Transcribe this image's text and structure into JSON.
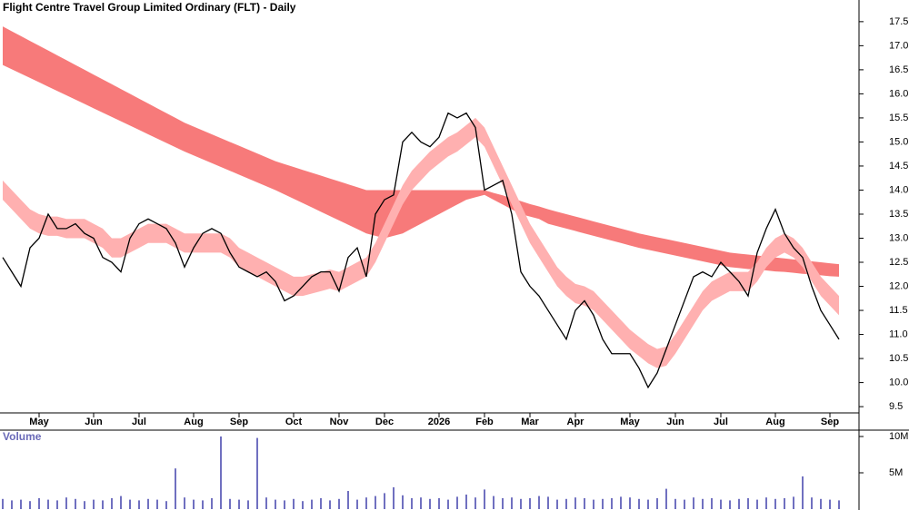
{
  "chart_data": [
    {
      "type": "line",
      "title": "Flight Centre Travel Group Limited Ordinary (FLT) - Daily",
      "categories": [
        null,
        null,
        null,
        null,
        "May",
        null,
        null,
        null,
        null,
        null,
        "Jun",
        null,
        null,
        null,
        null,
        "Jul",
        null,
        null,
        null,
        null,
        null,
        "Aug",
        null,
        null,
        null,
        null,
        "Sep",
        null,
        null,
        null,
        null,
        null,
        "Oct",
        null,
        null,
        null,
        null,
        "Nov",
        null,
        null,
        null,
        null,
        "Dec",
        null,
        null,
        null,
        null,
        null,
        "2026",
        null,
        null,
        null,
        null,
        "Feb",
        null,
        null,
        null,
        null,
        "Mar",
        null,
        null,
        null,
        null,
        "Apr",
        null,
        null,
        null,
        null,
        null,
        "May",
        null,
        null,
        null,
        null,
        "Jun",
        null,
        null,
        null,
        null,
        "Jul",
        null,
        null,
        null,
        null,
        null,
        "Aug",
        null,
        null,
        null,
        null,
        null,
        "Sep",
        null
      ],
      "series": [
        {
          "color": "#000000",
          "values": [
            12.6,
            12.3,
            12.0,
            12.8,
            13.0,
            13.5,
            13.2,
            13.2,
            13.3,
            13.1,
            13.0,
            12.6,
            12.5,
            12.3,
            13.0,
            13.3,
            13.4,
            13.3,
            13.2,
            12.9,
            12.4,
            12.8,
            13.1,
            13.2,
            13.1,
            12.7,
            12.4,
            12.3,
            12.2,
            12.3,
            12.1,
            11.7,
            11.8,
            12.0,
            12.2,
            12.3,
            12.3,
            11.9,
            12.6,
            12.8,
            12.2,
            13.5,
            13.8,
            13.9,
            15.0,
            15.2,
            15.0,
            14.9,
            15.1,
            15.6,
            15.5,
            15.6,
            15.3,
            14.0,
            14.1,
            14.2,
            13.5,
            12.3,
            12.0,
            11.8,
            11.5,
            11.2,
            10.9,
            11.5,
            11.7,
            11.4,
            10.9,
            10.6,
            10.6,
            10.6,
            10.3,
            9.9,
            10.2,
            10.7,
            11.2,
            11.7,
            12.2,
            12.3,
            12.2,
            12.5,
            12.3,
            12.1,
            11.8,
            12.7,
            13.2,
            13.6,
            13.1,
            12.8,
            12.6,
            12.0,
            11.5,
            11.2,
            10.9
          ]
        }
      ],
      "bands": [
        {
          "color": "#f77a7a",
          "upper": [
            17.4,
            17.3,
            17.2,
            17.1,
            17.0,
            16.9,
            16.8,
            16.7,
            16.6,
            16.5,
            16.4,
            16.3,
            16.2,
            16.1,
            16.0,
            15.9,
            15.8,
            15.7,
            15.6,
            15.5,
            15.4,
            15.32,
            15.24,
            15.16,
            15.08,
            15.0,
            14.92,
            14.84,
            14.76,
            14.68,
            14.6,
            14.54,
            14.48,
            14.42,
            14.36,
            14.3,
            14.24,
            14.18,
            14.12,
            14.06,
            14.0,
            14.0,
            14.0,
            14.0,
            14.0,
            14.0,
            14.0,
            14.0,
            14.0,
            14.0,
            14.0,
            14.0,
            14.0,
            14.0,
            13.94,
            13.89,
            13.83,
            13.77,
            13.71,
            13.66,
            13.6,
            13.55,
            13.5,
            13.45,
            13.4,
            13.35,
            13.3,
            13.25,
            13.2,
            13.15,
            13.1,
            13.06,
            13.02,
            12.98,
            12.94,
            12.9,
            12.86,
            12.82,
            12.78,
            12.74,
            12.7,
            12.68,
            12.66,
            12.64,
            12.62,
            12.6,
            12.58,
            12.56,
            12.54,
            12.52,
            12.5,
            12.48,
            12.46
          ],
          "lower": [
            16.6,
            16.51,
            16.42,
            16.33,
            16.24,
            16.15,
            16.06,
            15.97,
            15.88,
            15.79,
            15.7,
            15.61,
            15.52,
            15.43,
            15.34,
            15.25,
            15.16,
            15.07,
            14.98,
            14.89,
            14.8,
            14.72,
            14.64,
            14.56,
            14.48,
            14.4,
            14.32,
            14.24,
            14.16,
            14.08,
            14.0,
            13.91,
            13.82,
            13.73,
            13.64,
            13.55,
            13.46,
            13.37,
            13.28,
            13.19,
            13.1,
            13.05,
            13.0,
            13.05,
            13.1,
            13.2,
            13.3,
            13.4,
            13.5,
            13.6,
            13.7,
            13.8,
            13.85,
            13.9,
            13.8,
            13.7,
            13.6,
            13.5,
            13.45,
            13.4,
            13.3,
            13.25,
            13.2,
            13.15,
            13.1,
            13.05,
            13.0,
            12.95,
            12.9,
            12.85,
            12.8,
            12.76,
            12.72,
            12.68,
            12.64,
            12.6,
            12.56,
            12.52,
            12.48,
            12.44,
            12.4,
            12.38,
            12.36,
            12.35,
            12.33,
            12.31,
            12.3,
            12.28,
            12.26,
            12.25,
            12.23,
            12.21,
            12.2
          ]
        },
        {
          "color": "#ffb0b0",
          "upper": [
            14.2,
            14.0,
            13.8,
            13.6,
            13.5,
            13.45,
            13.45,
            13.4,
            13.4,
            13.4,
            13.3,
            13.2,
            13.0,
            13.0,
            13.1,
            13.2,
            13.3,
            13.3,
            13.3,
            13.2,
            13.1,
            13.1,
            13.1,
            13.1,
            13.1,
            13.0,
            12.8,
            12.7,
            12.6,
            12.5,
            12.4,
            12.3,
            12.2,
            12.2,
            12.25,
            12.3,
            12.35,
            12.3,
            12.4,
            12.5,
            12.6,
            12.9,
            13.3,
            13.7,
            14.1,
            14.4,
            14.6,
            14.8,
            14.95,
            15.1,
            15.2,
            15.35,
            15.5,
            15.3,
            14.9,
            14.5,
            14.1,
            13.7,
            13.3,
            13.0,
            12.7,
            12.4,
            12.2,
            12.05,
            12.0,
            11.9,
            11.7,
            11.5,
            11.3,
            11.1,
            10.95,
            10.8,
            10.7,
            10.75,
            11.0,
            11.3,
            11.6,
            11.9,
            12.1,
            12.2,
            12.3,
            12.3,
            12.3,
            12.5,
            12.8,
            13.0,
            13.1,
            13.0,
            12.8,
            12.5,
            12.2,
            12.0,
            11.8
          ],
          "lower": [
            13.8,
            13.6,
            13.4,
            13.2,
            13.1,
            13.05,
            13.05,
            13.0,
            13.0,
            13.0,
            12.9,
            12.8,
            12.6,
            12.6,
            12.7,
            12.8,
            12.9,
            12.9,
            12.9,
            12.8,
            12.7,
            12.7,
            12.7,
            12.7,
            12.7,
            12.6,
            12.4,
            12.3,
            12.2,
            12.1,
            12.0,
            11.9,
            11.8,
            11.8,
            11.85,
            11.9,
            11.95,
            11.9,
            12.0,
            12.1,
            12.2,
            12.5,
            12.9,
            13.3,
            13.7,
            14.0,
            14.2,
            14.4,
            14.55,
            14.7,
            14.8,
            14.95,
            15.1,
            14.9,
            14.5,
            14.1,
            13.7,
            13.3,
            12.9,
            12.6,
            12.3,
            12.0,
            11.8,
            11.65,
            11.6,
            11.5,
            11.3,
            11.1,
            10.9,
            10.7,
            10.55,
            10.4,
            10.3,
            10.35,
            10.6,
            10.9,
            11.2,
            11.5,
            11.7,
            11.8,
            11.9,
            11.9,
            11.9,
            12.1,
            12.4,
            12.6,
            12.7,
            12.6,
            12.4,
            12.1,
            11.8,
            11.6,
            11.4
          ]
        }
      ],
      "ylim": [
        9.37,
        17.95
      ],
      "yticks": [
        9.5,
        {
          "value": 10,
          "label": "10.0"
        },
        10.5,
        {
          "value": 11,
          "label": "11.0"
        },
        11.5,
        {
          "value": 12,
          "label": "12.0"
        },
        12.5,
        {
          "value": 13,
          "label": "13.0"
        },
        13.5,
        {
          "value": 14,
          "label": "14.0"
        },
        14.5,
        {
          "value": 15,
          "label": "15.0"
        },
        15.5,
        {
          "value": 16,
          "label": "16.0"
        },
        16.5,
        {
          "value": 17,
          "label": "17.0"
        },
        17.5
      ]
    },
    {
      "type": "bar",
      "title": "Volume",
      "color": "#7070c0",
      "values": [
        1400000,
        1200000,
        1300000,
        1100000,
        1500000,
        1300000,
        1200000,
        1600000,
        1400000,
        1100000,
        1300000,
        1200000,
        1500000,
        1800000,
        1300000,
        1200000,
        1400000,
        1300000,
        1100000,
        5600000,
        1600000,
        1300000,
        1200000,
        1500000,
        10000000,
        1400000,
        1300000,
        1200000,
        9800000,
        1600000,
        1300000,
        1200000,
        1400000,
        1100000,
        1300000,
        1500000,
        1200000,
        1400000,
        2500000,
        1300000,
        1600000,
        1800000,
        2200000,
        3000000,
        1900000,
        1500000,
        1600000,
        1400000,
        1500000,
        1300000,
        1700000,
        2000000,
        1600000,
        2700000,
        1800000,
        1500000,
        1600000,
        1400000,
        1500000,
        1800000,
        1700000,
        1300000,
        1400000,
        1600000,
        1500000,
        1300000,
        1400000,
        1500000,
        1700000,
        1600000,
        1400000,
        1300000,
        1500000,
        2800000,
        1400000,
        1300000,
        1600000,
        1400000,
        1500000,
        1300000,
        1200000,
        1400000,
        1500000,
        1300000,
        1600000,
        1400000,
        1500000,
        1700000,
        4500000,
        1600000,
        1400000,
        1300000,
        1200000
      ],
      "ylim": [
        0,
        10750000
      ],
      "yticks": [
        {
          "value": 5000000,
          "label": "5M"
        },
        {
          "value": 10000000,
          "label": "10M"
        }
      ]
    }
  ]
}
